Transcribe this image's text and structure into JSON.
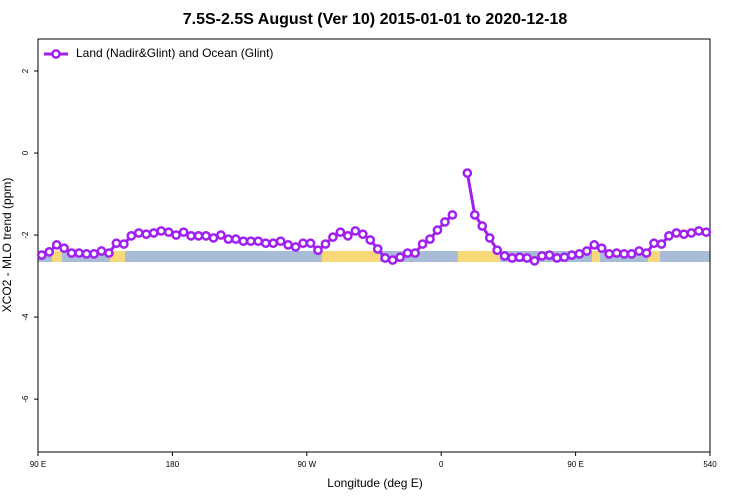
{
  "chart_data": {
    "type": "line",
    "title": "7.5S-2.5S August (Ver 10)   2015-01-01 to 2020-12-18",
    "x_label": "Longitude (deg E)",
    "y_label": "XCO2 - MLO trend (ppm)",
    "xlim": [
      90,
      540
    ],
    "ylim": [
      -7.29,
      2.78
    ],
    "xticks": [
      {
        "value": 90,
        "label": "90 E"
      },
      180,
      {
        "value": 270,
        "label": "90 W"
      },
      {
        "value": 360,
        "label": "0"
      },
      {
        "value": 450,
        "label": "90 E"
      },
      540
    ],
    "yticks": [
      2,
      0,
      -2,
      -4,
      -6
    ],
    "legend": "top-left",
    "x": [
      92.5,
      97.5,
      102.5,
      107.5,
      112.5,
      117.5,
      122.5,
      127.5,
      132.5,
      137.5,
      142.5,
      147.5,
      152.5,
      157.5,
      162.5,
      167.5,
      172.5,
      177.5,
      182.5,
      187.5,
      192.5,
      197.5,
      202.5,
      207.5,
      212.5,
      217.5,
      222.5,
      227.5,
      232.5,
      237.5,
      242.5,
      247.5,
      252.5,
      257.5,
      262.5,
      267.5,
      272.5,
      277.5,
      282.5,
      287.5,
      292.5,
      297.5,
      302.5,
      307.5,
      312.5,
      317.5,
      322.5,
      327.5,
      332.5,
      337.5,
      342.5,
      347.5,
      352.5,
      357.5,
      362.5,
      367.5,
      372.5,
      377.5,
      382.5,
      387.5,
      392.5,
      397.5,
      402.5,
      407.5,
      412.5,
      417.5,
      422.5,
      427.5,
      432.5,
      437.5,
      442.5,
      447.5,
      452.5,
      457.5,
      462.5,
      467.5,
      472.5,
      477.5,
      482.5,
      487.5,
      492.5,
      497.5,
      502.5,
      507.5,
      512.5,
      517.5,
      522.5,
      527.5,
      532.5,
      537.5
    ],
    "series": [
      {
        "name": "Land (Nadir&Glint) and Ocean (Glint)",
        "color": "#a020f0",
        "values": [
          -2.49,
          -2.41,
          -2.24,
          -2.32,
          -2.44,
          -2.44,
          -2.46,
          -2.46,
          -2.39,
          -2.44,
          -2.2,
          -2.22,
          -2.02,
          -1.95,
          -1.98,
          -1.95,
          -1.9,
          -1.93,
          -2.0,
          -1.93,
          -2.02,
          -2.02,
          -2.02,
          -2.07,
          -2.0,
          -2.1,
          -2.1,
          -2.15,
          -2.15,
          -2.15,
          -2.2,
          -2.2,
          -2.15,
          -2.24,
          -2.29,
          -2.2,
          -2.2,
          -2.37,
          -2.22,
          -2.05,
          -1.93,
          -2.02,
          -1.9,
          -1.98,
          -2.12,
          -2.34,
          -2.56,
          -2.61,
          -2.54,
          -2.44,
          -2.44,
          -2.22,
          -2.1,
          -1.88,
          -1.68,
          -1.51,
          null,
          -0.49,
          -1.51,
          -1.78,
          -2.07,
          -2.37,
          -2.51,
          -2.56,
          -2.54,
          -2.56,
          -2.63,
          -2.51,
          -2.49,
          -2.56,
          -2.54,
          -2.49,
          -2.46,
          -2.39,
          -2.24,
          -2.32,
          -2.46,
          -2.44,
          -2.46,
          -2.46,
          -2.39,
          -2.44,
          -2.2,
          -2.22,
          -2.02,
          -1.95,
          -1.98,
          -1.95,
          -1.9,
          -1.93
        ]
      }
    ]
  }
}
